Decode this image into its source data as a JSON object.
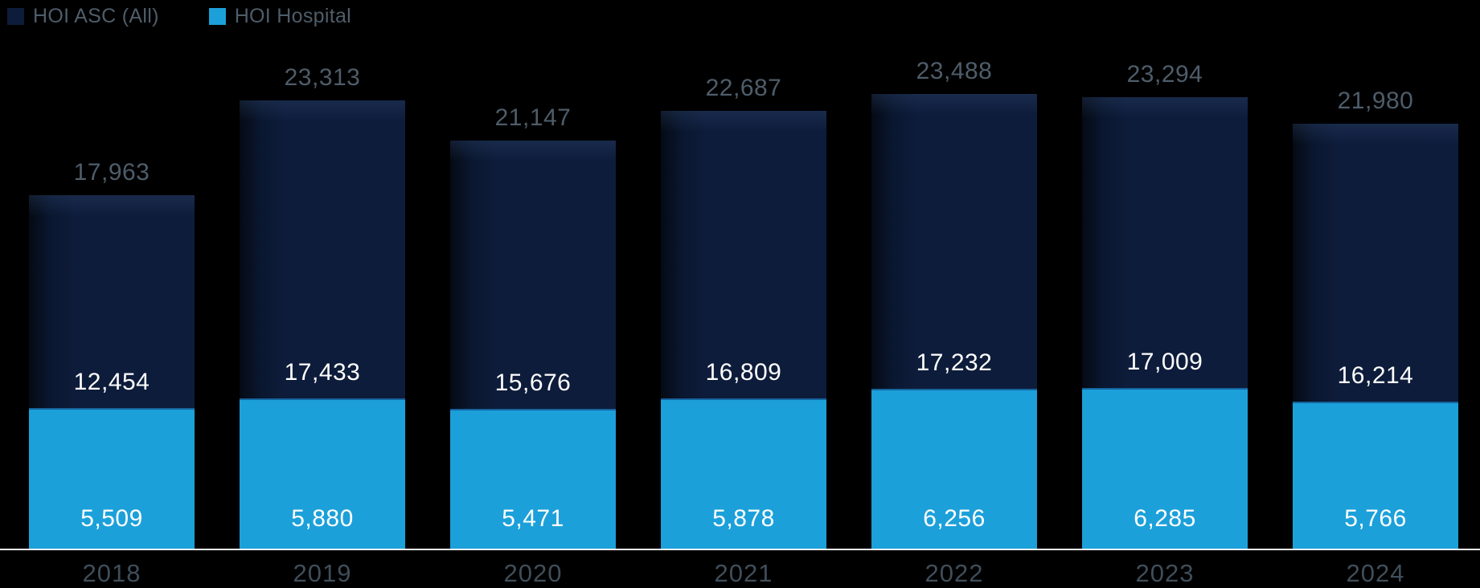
{
  "legend": [
    {
      "label": "HOI ASC (All)",
      "color": "#0e1c3b"
    },
    {
      "label": "HOI Hospital",
      "color": "#1ca0da"
    }
  ],
  "chart_data": {
    "type": "bar",
    "stacked": true,
    "title": "",
    "xlabel": "",
    "ylabel": "",
    "grid": false,
    "legend_position": "top-left",
    "background": "#000000",
    "categories": [
      "2018",
      "2019",
      "2020",
      "2021",
      "2022",
      "2023",
      "2024"
    ],
    "series": [
      {
        "name": "HOI ASC (All)",
        "color": "#0e1c3b",
        "values": [
          12454,
          17433,
          15676,
          16809,
          17232,
          17009,
          16214
        ]
      },
      {
        "name": "HOI Hospital",
        "color": "#1ca0da",
        "values": [
          5509,
          5880,
          5471,
          5878,
          6256,
          6285,
          5766
        ]
      }
    ],
    "totals": [
      17963,
      23313,
      21147,
      22687,
      23488,
      23294,
      21980
    ]
  },
  "colors": {
    "background": "#000000",
    "navy": "#0e1c3b",
    "blue": "#1ca0da",
    "total_label": "#4e5d6a",
    "year_label": "#3f4e5a",
    "value_text": "#ffffff",
    "axis_line": "#f4f5f6"
  }
}
